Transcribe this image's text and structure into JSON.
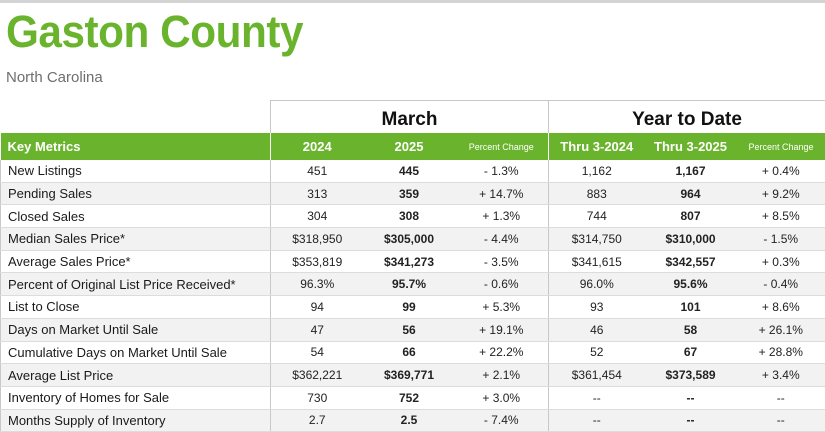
{
  "title": "Gaston County",
  "subtitle": "North Carolina",
  "groups": {
    "month": "March",
    "ytd": "Year to Date"
  },
  "headers": {
    "key_metrics": "Key Metrics",
    "y1": "2024",
    "y2": "2025",
    "pct": "Percent Change",
    "ytd1": "Thru 3-2024",
    "ytd2": "Thru 3-2025",
    "ytd_pct": "Percent Change"
  },
  "rows": [
    {
      "metric": "New Listings",
      "m2024": "451",
      "m2025": "445",
      "m_pct": "- 1.3%",
      "y2024": "1,162",
      "y2025": "1,167",
      "y_pct": "+ 0.4%"
    },
    {
      "metric": "Pending Sales",
      "m2024": "313",
      "m2025": "359",
      "m_pct": "+ 14.7%",
      "y2024": "883",
      "y2025": "964",
      "y_pct": "+ 9.2%"
    },
    {
      "metric": "Closed Sales",
      "m2024": "304",
      "m2025": "308",
      "m_pct": "+ 1.3%",
      "y2024": "744",
      "y2025": "807",
      "y_pct": "+ 8.5%"
    },
    {
      "metric": "Median Sales Price*",
      "m2024": "$318,950",
      "m2025": "$305,000",
      "m_pct": "- 4.4%",
      "y2024": "$314,750",
      "y2025": "$310,000",
      "y_pct": "- 1.5%"
    },
    {
      "metric": "Average Sales Price*",
      "m2024": "$353,819",
      "m2025": "$341,273",
      "m_pct": "- 3.5%",
      "y2024": "$341,615",
      "y2025": "$342,557",
      "y_pct": "+ 0.3%"
    },
    {
      "metric": "Percent of Original List Price Received*",
      "m2024": "96.3%",
      "m2025": "95.7%",
      "m_pct": "- 0.6%",
      "y2024": "96.0%",
      "y2025": "95.6%",
      "y_pct": "- 0.4%"
    },
    {
      "metric": "List to Close",
      "m2024": "94",
      "m2025": "99",
      "m_pct": "+ 5.3%",
      "y2024": "93",
      "y2025": "101",
      "y_pct": "+ 8.6%"
    },
    {
      "metric": "Days on Market Until Sale",
      "m2024": "47",
      "m2025": "56",
      "m_pct": "+ 19.1%",
      "y2024": "46",
      "y2025": "58",
      "y_pct": "+ 26.1%"
    },
    {
      "metric": "Cumulative Days on Market Until Sale",
      "m2024": "54",
      "m2025": "66",
      "m_pct": "+ 22.2%",
      "y2024": "52",
      "y2025": "67",
      "y_pct": "+ 28.8%"
    },
    {
      "metric": "Average List Price",
      "m2024": "$362,221",
      "m2025": "$369,771",
      "m_pct": "+ 2.1%",
      "y2024": "$361,454",
      "y2025": "$373,589",
      "y_pct": "+ 3.4%"
    },
    {
      "metric": "Inventory of Homes for Sale",
      "m2024": "730",
      "m2025": "752",
      "m_pct": "+ 3.0%",
      "y2024": "--",
      "y2025": "--",
      "y_pct": "--"
    },
    {
      "metric": "Months Supply of Inventory",
      "m2024": "2.7",
      "m2025": "2.5",
      "m_pct": "- 7.4%",
      "y2024": "--",
      "y2025": "--",
      "y_pct": "--"
    }
  ]
}
